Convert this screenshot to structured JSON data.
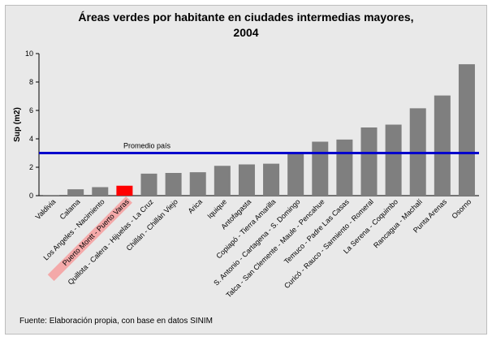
{
  "chart_data": {
    "type": "bar",
    "title_line1": "Áreas verdes por habitante en ciudades intermedias mayores,",
    "title_line2": "2004",
    "ylabel": "Sup (m2)",
    "ylim": [
      0,
      10
    ],
    "yticks": [
      "0",
      "2",
      "4",
      "6",
      "8",
      "10"
    ],
    "grid": false,
    "categories": [
      "Valdivia",
      "Calama",
      "Los Angeles - Nacimiento",
      "Puerto Montt - Puerto Varas",
      "Quillota - Calera - Hijuelas - La Cruz",
      "Chillán - Chillán Viejo",
      "Arica",
      "Iquique",
      "Antofagasta",
      "Copiapó - Tierra Amarilla",
      "S. Antonio - Cartagena - S. Domingo",
      "Talca - San Clemente - Maule - Pencahue",
      "Temuco - Padre Las Casas",
      "Curicó - Rauco - Sarmiento - Romeral",
      "La Serena - Coquimbo",
      "Rancagua - Machalí",
      "Punta Arenas",
      "Osorno"
    ],
    "values": [
      0.05,
      0.45,
      0.6,
      0.7,
      1.55,
      1.6,
      1.65,
      2.1,
      2.2,
      2.25,
      2.95,
      3.8,
      3.95,
      4.8,
      5.0,
      6.15,
      7.05,
      9.25
    ],
    "highlight_index": 3,
    "bar_color": "#7f7f7f",
    "highlight_color": "#ff0000",
    "highlight_label_bg": "#f4a9a9",
    "reference_line": {
      "label": "Promedio país",
      "value": 3.0,
      "color": "#0000cc"
    }
  },
  "source": "Fuente: Elaboración propia, con base en datos SINIM"
}
